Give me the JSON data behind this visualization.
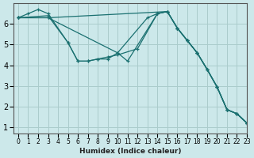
{
  "xlabel": "Humidex (Indice chaleur)",
  "ylabel": "",
  "bg_color": "#cce8ea",
  "grid_color": "#aacccc",
  "line_color": "#1a7070",
  "xlim": [
    -0.5,
    23
  ],
  "ylim": [
    0.7,
    7.0
  ],
  "xticks": [
    0,
    1,
    2,
    3,
    4,
    5,
    6,
    7,
    8,
    9,
    10,
    11,
    12,
    13,
    14,
    15,
    16,
    17,
    18,
    19,
    20,
    21,
    22,
    23
  ],
  "yticks": [
    1,
    2,
    3,
    4,
    5,
    6
  ],
  "lines": [
    {
      "x": [
        0,
        1,
        2,
        3,
        5,
        6,
        7,
        8,
        9,
        10,
        11,
        14,
        15,
        16,
        17,
        18,
        19,
        20,
        21,
        22,
        23
      ],
      "y": [
        6.3,
        6.5,
        6.7,
        6.5,
        5.1,
        4.2,
        4.2,
        4.3,
        4.3,
        4.6,
        4.2,
        6.5,
        6.6,
        5.8,
        5.2,
        4.6,
        3.8,
        2.95,
        1.85,
        1.65,
        1.2
      ]
    },
    {
      "x": [
        0,
        3,
        5,
        6,
        7,
        8,
        9,
        10,
        12,
        14,
        15,
        16,
        17,
        18,
        19,
        20,
        21,
        22,
        23
      ],
      "y": [
        6.3,
        6.4,
        5.1,
        4.2,
        4.2,
        4.3,
        4.4,
        4.5,
        4.8,
        6.5,
        6.6,
        5.8,
        5.2,
        4.6,
        3.8,
        2.95,
        1.85,
        1.65,
        1.2
      ]
    },
    {
      "x": [
        0,
        3,
        10,
        13,
        14,
        15,
        16,
        17,
        18,
        19,
        20,
        21,
        22,
        23
      ],
      "y": [
        6.3,
        6.3,
        4.6,
        6.3,
        6.5,
        6.6,
        5.8,
        5.2,
        4.6,
        3.8,
        2.95,
        1.85,
        1.65,
        1.2
      ]
    },
    {
      "x": [
        0,
        3,
        15,
        16,
        17,
        18,
        19,
        20,
        21,
        22,
        23
      ],
      "y": [
        6.3,
        6.3,
        6.6,
        5.8,
        5.2,
        4.6,
        3.8,
        2.95,
        1.85,
        1.65,
        1.2
      ]
    }
  ]
}
